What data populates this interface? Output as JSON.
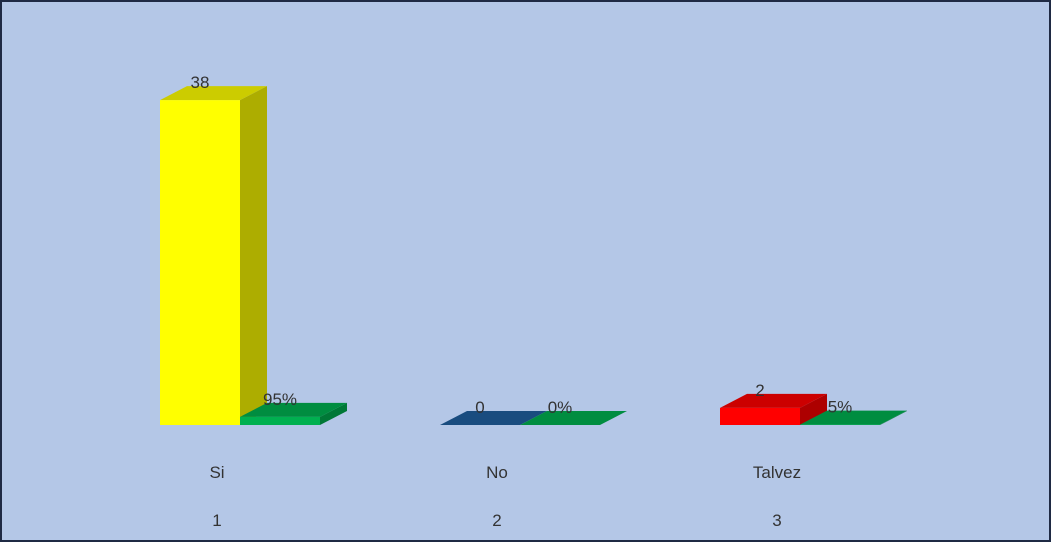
{
  "chart_data": {
    "type": "bar3d",
    "categories": [
      "Si",
      "No",
      "Talvez"
    ],
    "category_numbers": [
      "1",
      "2",
      "3"
    ],
    "series": [
      {
        "values": [
          38,
          0,
          2
        ],
        "colors": [
          "#ffff00",
          "#1f5f9f",
          "#ff0000"
        ]
      },
      {
        "values": [
          95,
          0,
          5
        ],
        "value_labels": [
          "95%",
          "0%",
          "5%"
        ],
        "color": "#00b050",
        "axis": "y2"
      }
    ],
    "ylim": [
      0,
      40
    ],
    "y2lim": [
      0,
      4000
    ]
  }
}
